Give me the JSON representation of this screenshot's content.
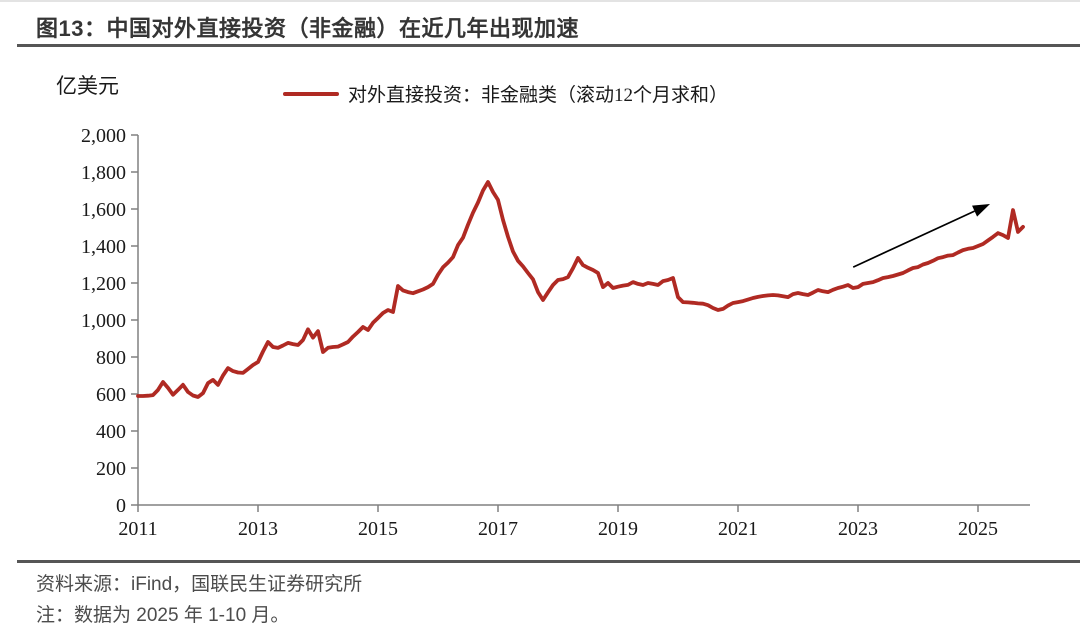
{
  "header": {
    "title": "图13：中国对外直接投资（非金融）在近几年出现加速"
  },
  "chart_data": {
    "type": "line",
    "title": "中国对外直接投资（非金融）在近几年出现加速",
    "unit": "亿美元",
    "ylabel": "亿美元",
    "xlabel": "",
    "ylim": [
      0,
      2000
    ],
    "grid": false,
    "legend_position": "top",
    "x_ticks": [
      "2011",
      "2013",
      "2015",
      "2017",
      "2019",
      "2021",
      "2023",
      "2025"
    ],
    "y_ticks": [
      "0",
      "200",
      "400",
      "600",
      "800",
      "1,000",
      "1,200",
      "1,400",
      "1,600",
      "1,800",
      "2,000"
    ],
    "series": [
      {
        "name": "对外直接投资：非金融类（滚动12个月求和）",
        "color": "#b02a23",
        "frequency": "monthly",
        "start": "2011-01",
        "end": "2025-10",
        "values": [
          589,
          589,
          591,
          594,
          622,
          665,
          633,
          596,
          622,
          650,
          611,
          592,
          584,
          605,
          659,
          676,
          649,
          700,
          740,
          724,
          716,
          714,
          735,
          757,
          773,
          830,
          881,
          854,
          849,
          862,
          876,
          870,
          865,
          892,
          950,
          905,
          940,
          827,
          850,
          854,
          856,
          868,
          881,
          910,
          935,
          962,
          946,
          985,
          1011,
          1038,
          1054,
          1043,
          1184,
          1160,
          1151,
          1145,
          1155,
          1165,
          1178,
          1195,
          1245,
          1285,
          1310,
          1340,
          1405,
          1445,
          1515,
          1580,
          1635,
          1700,
          1746,
          1692,
          1649,
          1541,
          1450,
          1370,
          1320,
          1290,
          1254,
          1220,
          1151,
          1108,
          1150,
          1189,
          1216,
          1221,
          1232,
          1280,
          1335,
          1297,
          1282,
          1270,
          1254,
          1178,
          1200,
          1173,
          1180,
          1186,
          1190,
          1205,
          1195,
          1189,
          1200,
          1195,
          1189,
          1210,
          1216,
          1227,
          1124,
          1097,
          1095,
          1093,
          1090,
          1088,
          1080,
          1065,
          1054,
          1060,
          1078,
          1092,
          1097,
          1102,
          1110,
          1119,
          1125,
          1130,
          1133,
          1135,
          1133,
          1128,
          1124,
          1140,
          1146,
          1140,
          1135,
          1148,
          1162,
          1155,
          1151,
          1163,
          1173,
          1180,
          1189,
          1173,
          1178,
          1195,
          1200,
          1205,
          1215,
          1227,
          1232,
          1238,
          1246,
          1254,
          1268,
          1281,
          1286,
          1300,
          1308,
          1320,
          1334,
          1340,
          1348,
          1351,
          1365,
          1378,
          1385,
          1389,
          1400,
          1411,
          1430,
          1449,
          1470,
          1459,
          1443,
          1594,
          1476,
          1503
        ]
      }
    ],
    "annotation_arrow": {
      "from": [
        2022.92,
        1286
      ],
      "to": [
        2025.2,
        1627
      ],
      "color": "#000000"
    }
  },
  "footer": {
    "source": "资料来源：iFind，国联民生证券研究所",
    "note": "注：数据为 2025 年 1-10 月。"
  }
}
